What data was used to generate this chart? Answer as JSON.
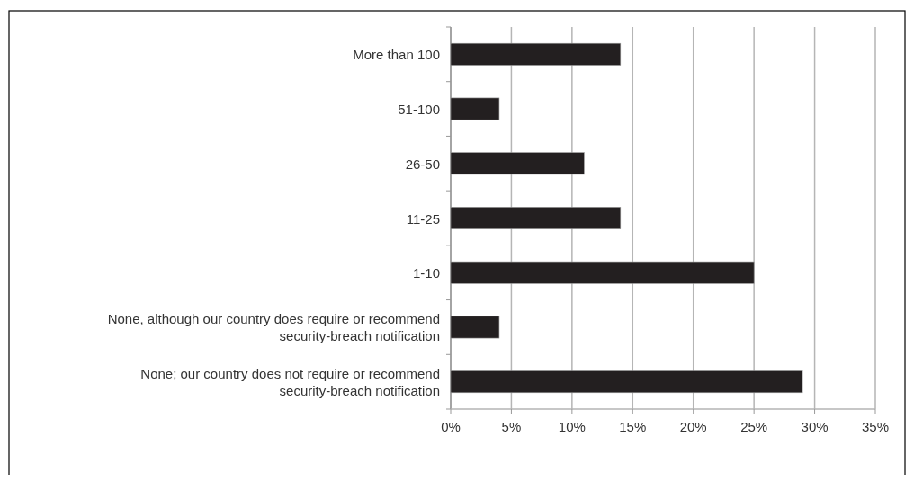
{
  "chart_data": {
    "type": "bar",
    "orientation": "horizontal",
    "categories": [
      "More than 100",
      "51-100",
      "26-50",
      "11-25",
      "1-10",
      "None, although our country does require or recommend security-breach notification",
      "None; our country does not require or recommend security-breach notification"
    ],
    "values": [
      14,
      4,
      11,
      14,
      25,
      4,
      29
    ],
    "color": "#231f20",
    "xlim": [
      0,
      35
    ],
    "xticks": [
      {
        "value": 0,
        "label": "0%"
      },
      {
        "value": 5,
        "label": "5%"
      },
      {
        "value": 10,
        "label": "10%"
      },
      {
        "value": 15,
        "label": "15%"
      },
      {
        "value": 20,
        "label": "20%"
      },
      {
        "value": 25,
        "label": "25%"
      },
      {
        "value": 30,
        "label": "30%"
      },
      {
        "value": 35,
        "label": "35%"
      }
    ],
    "grid": "x"
  }
}
